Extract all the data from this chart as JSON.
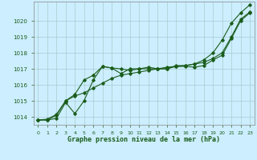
{
  "xlabel": "Graphe pression niveau de la mer (hPa)",
  "background_color": "#cceeff",
  "grid_color": "#aacccc",
  "line_color": "#1a5c1a",
  "xlim": [
    -0.5,
    23.5
  ],
  "ylim": [
    1013.5,
    1021.2
  ],
  "yticks": [
    1014,
    1015,
    1016,
    1017,
    1018,
    1019,
    1020
  ],
  "xticks": [
    0,
    1,
    2,
    3,
    4,
    5,
    6,
    7,
    8,
    9,
    10,
    11,
    12,
    13,
    14,
    15,
    16,
    17,
    18,
    19,
    20,
    21,
    22,
    23
  ],
  "series1_x": [
    0,
    1,
    2,
    3,
    4,
    5,
    6,
    7,
    8,
    9,
    10,
    11,
    12,
    13,
    14,
    15,
    16,
    17,
    18,
    19,
    20,
    21,
    22,
    23
  ],
  "series1_y": [
    1013.8,
    1013.8,
    1013.9,
    1014.9,
    1014.2,
    1015.0,
    1016.3,
    1017.15,
    1017.05,
    1017.0,
    1016.9,
    1017.0,
    1017.0,
    1017.0,
    1017.0,
    1017.15,
    1017.15,
    1017.1,
    1017.2,
    1017.55,
    1017.85,
    1018.9,
    1020.0,
    1020.5
  ],
  "series2_x": [
    0,
    1,
    2,
    3,
    4,
    5,
    6,
    7,
    8,
    9,
    10,
    11,
    12,
    13,
    14,
    15,
    16,
    17,
    18,
    19,
    20,
    21,
    22,
    23
  ],
  "series2_y": [
    1013.8,
    1013.8,
    1014.1,
    1015.0,
    1015.3,
    1015.5,
    1015.8,
    1016.1,
    1016.4,
    1016.6,
    1016.7,
    1016.8,
    1016.9,
    1017.0,
    1017.1,
    1017.15,
    1017.2,
    1017.3,
    1017.4,
    1017.65,
    1018.0,
    1019.0,
    1020.1,
    1020.55
  ],
  "series3_x": [
    0,
    1,
    2,
    3,
    4,
    5,
    6,
    7,
    8,
    9,
    10,
    11,
    12,
    13,
    14,
    15,
    16,
    17,
    18,
    19,
    20,
    21,
    22,
    23
  ],
  "series3_y": [
    1013.8,
    1013.85,
    1014.15,
    1015.0,
    1015.4,
    1016.3,
    1016.6,
    1017.15,
    1017.05,
    1016.7,
    1017.0,
    1017.0,
    1017.1,
    1017.0,
    1017.0,
    1017.2,
    1017.2,
    1017.3,
    1017.55,
    1018.0,
    1018.8,
    1019.85,
    1020.5,
    1021.0
  ]
}
